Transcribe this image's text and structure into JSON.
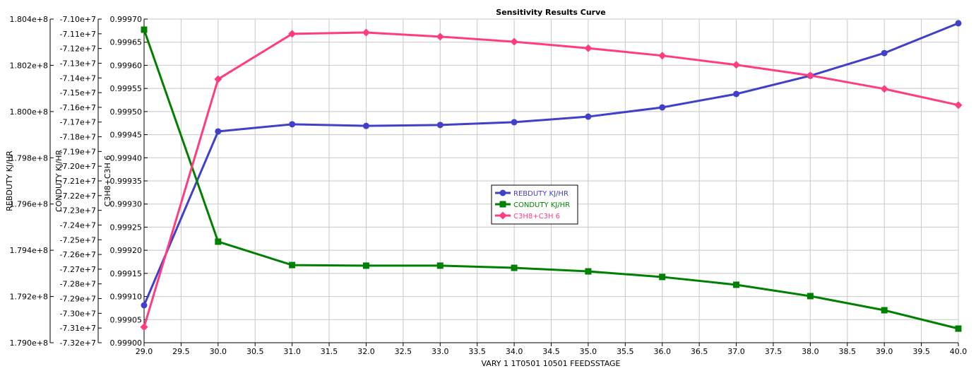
{
  "chart_data": {
    "type": "line",
    "title": "Sensitivity Results Curve",
    "xlabel": "VARY  1 1T0501 10501 FEEDSSTAGE",
    "xlim": [
      29.0,
      40.0
    ],
    "x_ticks": [
      "29.0",
      "29.5",
      "30.0",
      "30.5",
      "31.0",
      "31.5",
      "32.0",
      "32.5",
      "33.0",
      "33.5",
      "34.0",
      "34.5",
      "35.0",
      "35.5",
      "36.0",
      "36.5",
      "37.0",
      "37.5",
      "38.0",
      "38.5",
      "39.0",
      "39.5",
      "40.0"
    ],
    "x": [
      29,
      30,
      31,
      32,
      33,
      34,
      35,
      36,
      37,
      38,
      39,
      40
    ],
    "grid": true,
    "legend_position": "center",
    "axes": [
      {
        "id": "reb",
        "label": "REBDUTY KJ/HR",
        "ylim": [
          179000000.0,
          180400000.0
        ],
        "ticks": [
          "1.790e+8",
          "1.792e+8",
          "1.794e+8",
          "1.796e+8",
          "1.798e+8",
          "1.800e+8",
          "1.802e+8",
          "1.804e+8"
        ]
      },
      {
        "id": "con",
        "label": "CONDUTY KJ/HR",
        "ylim": [
          -73200000.0,
          -71000000.0
        ],
        "ticks": [
          "-7.32e+7",
          "-7.31e+7",
          "-7.30e+7",
          "-7.29e+7",
          "-7.28e+7",
          "-7.27e+7",
          "-7.26e+7",
          "-7.25e+7",
          "-7.24e+7",
          "-7.23e+7",
          "-7.22e+7",
          "-7.21e+7",
          "-7.20e+7",
          "-7.19e+7",
          "-7.18e+7",
          "-7.17e+7",
          "-7.16e+7",
          "-7.15e+7",
          "-7.14e+7",
          "-7.13e+7",
          "-7.12e+7",
          "-7.11e+7",
          "-7.10e+7"
        ]
      },
      {
        "id": "c3",
        "label": "C3H8+C3H 6",
        "ylim": [
          0.999,
          0.9997
        ],
        "ticks": [
          "0.99900",
          "0.99905",
          "0.99910",
          "0.99915",
          "0.99920",
          "0.99925",
          "0.99930",
          "0.99935",
          "0.99940",
          "0.99945",
          "0.99950",
          "0.99955",
          "0.99960",
          "0.99965",
          "0.99970"
        ]
      }
    ],
    "series": [
      {
        "name": "REBDUTY KJ/HR",
        "axis": "reb",
        "color": "#4040c8",
        "marker": "circle",
        "values": [
          179162000.0,
          179914000.0,
          179945000.0,
          179938000.0,
          179942000.0,
          179954000.0,
          179978000.0,
          180018000.0,
          180076000.0,
          180155000.0,
          180253000.0,
          180382000.0
        ]
      },
      {
        "name": "CONDUTY KJ/HR",
        "axis": "con",
        "color": "#008000",
        "marker": "square",
        "values": [
          -71072000.0,
          -72513000.0,
          -72672000.0,
          -72676000.0,
          -72676000.0,
          -72691000.0,
          -72715000.0,
          -72753000.0,
          -72806000.0,
          -72883000.0,
          -72979000.0,
          -73104000.0
        ]
      },
      {
        "name": "C3H8+C3H 6",
        "axis": "c3",
        "color": "#ff3c82",
        "marker": "diamond",
        "values": [
          0.999034,
          0.99957,
          0.999668,
          0.999671,
          0.999662,
          0.999651,
          0.999637,
          0.999621,
          0.999601,
          0.999578,
          0.999549,
          0.999514
        ]
      }
    ]
  }
}
